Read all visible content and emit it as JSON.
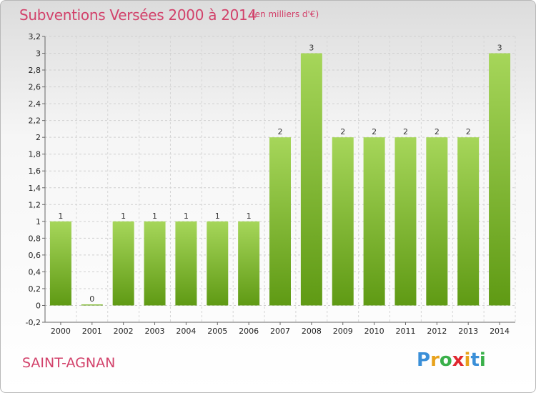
{
  "title": "Subventions Versées 2000 à 2014",
  "subtitle": "(en milliers d'€)",
  "commune": "SAINT-AGNAN",
  "logo": {
    "text": "Proxiti",
    "letter_colors": [
      "#3a8fd8",
      "#e8a21c",
      "#3ab04a",
      "#e0272f",
      "#e8a21c",
      "#3a8fd8",
      "#3ab04a"
    ]
  },
  "colors": {
    "title": "#d2416a",
    "bar_light": "#a6d65a",
    "bar_dark": "#5f9a14"
  },
  "chart_data": {
    "type": "bar",
    "categories": [
      "2000",
      "2001",
      "2002",
      "2003",
      "2004",
      "2005",
      "2006",
      "2007",
      "2008",
      "2009",
      "2010",
      "2011",
      "2012",
      "2013",
      "2014"
    ],
    "values": [
      1,
      0,
      1,
      1,
      1,
      1,
      1,
      2,
      3,
      2,
      2,
      2,
      2,
      2,
      3
    ],
    "data_labels": [
      "1",
      "0",
      "1",
      "1",
      "1",
      "1",
      "1",
      "2",
      "3",
      "2",
      "2",
      "2",
      "2",
      "2",
      "3"
    ],
    "ylim": [
      -0.2,
      3.2
    ],
    "yticks": [
      -0.2,
      0,
      0.2,
      0.4,
      0.6,
      0.8,
      1,
      1.2,
      1.4,
      1.6,
      1.8,
      2,
      2.2,
      2.4,
      2.6,
      2.8,
      3,
      3.2
    ],
    "ytick_labels": [
      "-0,2",
      "0",
      "0,2",
      "0,4",
      "0,6",
      "0,8",
      "1",
      "1,2",
      "1,4",
      "1,6",
      "1,8",
      "2",
      "2,2",
      "2,4",
      "2,6",
      "2,8",
      "3",
      "3,2"
    ],
    "grid": true,
    "xlabel": "",
    "ylabel": ""
  }
}
